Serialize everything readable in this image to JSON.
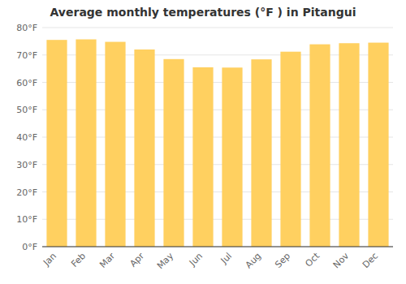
{
  "chart_data": {
    "type": "bar",
    "title": "Average monthly temperatures (°F ) in Pitangui",
    "categories": [
      "Jan",
      "Feb",
      "Mar",
      "Apr",
      "May",
      "Jun",
      "Jul",
      "Aug",
      "Sep",
      "Oct",
      "Nov",
      "Dec"
    ],
    "values": [
      75.5,
      75.7,
      74.8,
      72.0,
      68.5,
      65.5,
      65.4,
      68.4,
      71.2,
      73.9,
      74.3,
      74.5
    ],
    "color": "#FFD060",
    "ylim": [
      0,
      80
    ],
    "yticks": [
      {
        "value": 0,
        "label": "0°F"
      },
      {
        "value": 10,
        "label": "10°F"
      },
      {
        "value": 20,
        "label": "20°F"
      },
      {
        "value": 30,
        "label": "30°F"
      },
      {
        "value": 40,
        "label": "40°F"
      },
      {
        "value": 50,
        "label": "50°F"
      },
      {
        "value": 60,
        "label": "60°F"
      },
      {
        "value": 70,
        "label": "70°F"
      },
      {
        "value": 80,
        "label": "80°F"
      }
    ],
    "grid": true
  }
}
